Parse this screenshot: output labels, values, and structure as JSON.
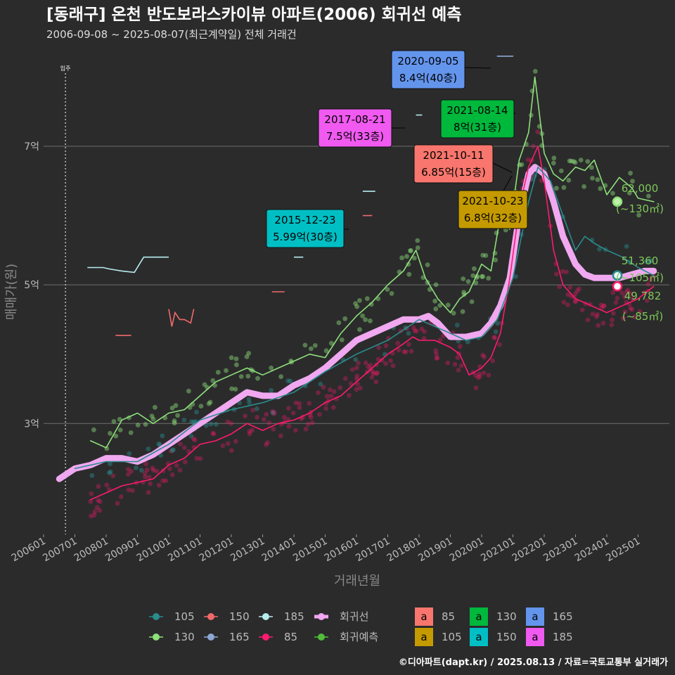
{
  "title": "[동래구] 온천 반도보라스카이뷰 아파트(2006) 회귀선 예측",
  "subtitle": "2006-09-08 ~ 2025-08-07(최근계약일) 전체 거래건",
  "caption": "©디아파트(dapt.kr) / 2025.08.13 / 자료=국토교통부 실거래가",
  "colors": {
    "background": "#2b2b2c",
    "grid": "#6e6e6e",
    "s85": "#ff1a6e",
    "s105": "#2a8c8c",
    "s130": "#8ee07a",
    "s150": "#f06a6a",
    "s165": "#8da7d3",
    "s185": "#b7ecee",
    "regression": "#f0a8f0",
    "prediction": "#4fbf3a"
  },
  "chart_data": {
    "type": "line",
    "title": "[동래구] 온천 반도보라스카이뷰 아파트(2006) 회귀선 예측",
    "xlabel": "거래년월",
    "ylabel": "매매가(원)",
    "xlim": [
      2006.0,
      2026.0
    ],
    "ylim": [
      14000,
      84000
    ],
    "y_ticks": [
      {
        "value": 30000,
        "label": "3억"
      },
      {
        "value": 50000,
        "label": "5억"
      },
      {
        "value": 70000,
        "label": "7억"
      }
    ],
    "x_ticks": [
      "200601",
      "200701",
      "200801",
      "200901",
      "201001",
      "201101",
      "201201",
      "201301",
      "201401",
      "201501",
      "201601",
      "201701",
      "201801",
      "201901",
      "202001",
      "202101",
      "202201",
      "202301",
      "202401",
      "202501"
    ],
    "vline": {
      "x": 2006.7,
      "label": "입주"
    },
    "series": [
      {
        "name": "85",
        "color_key": "s85",
        "x": [
          2007.5,
          2008.0,
          2008.5,
          2009.0,
          2009.5,
          2010.0,
          2010.5,
          2011.0,
          2011.5,
          2012.0,
          2012.5,
          2013.0,
          2013.5,
          2014.0,
          2014.5,
          2015.0,
          2015.5,
          2016.0,
          2016.5,
          2017.0,
          2017.5,
          2017.8,
          2018.0,
          2018.5,
          2019.0,
          2019.3,
          2019.6,
          2020.0,
          2020.3,
          2020.6,
          2020.9,
          2021.2,
          2021.5,
          2021.8,
          2022.0,
          2022.3,
          2022.6,
          2023.0,
          2023.5,
          2024.0,
          2024.5,
          2025.0,
          2025.5
        ],
        "y": [
          19000,
          20000,
          21000,
          21500,
          22000,
          24000,
          25000,
          27000,
          27500,
          28500,
          30000,
          29000,
          30000,
          30500,
          31500,
          33000,
          34000,
          36000,
          38000,
          40000,
          41500,
          42500,
          42000,
          42000,
          41000,
          40000,
          37000,
          38000,
          39500,
          43000,
          51000,
          61000,
          67000,
          70000,
          65000,
          55000,
          50000,
          48000,
          47000,
          46000,
          47000,
          48000,
          49782
        ]
      },
      {
        "name": "105",
        "color_key": "s105",
        "x": [
          2007.0,
          2008.0,
          2009.0,
          2010.0,
          2011.0,
          2012.0,
          2013.0,
          2014.0,
          2015.0,
          2016.0,
          2017.0,
          2017.5,
          2018.0,
          2018.5,
          2019.0,
          2019.5,
          2020.0,
          2020.5,
          2021.0,
          2021.5,
          2021.8,
          2022.2,
          2022.6,
          2023.0,
          2023.3,
          2023.6,
          2024.0,
          2024.5,
          2025.0,
          2025.5
        ],
        "y": [
          23500,
          24500,
          24500,
          27000,
          30500,
          32000,
          33000,
          34500,
          37500,
          40000,
          42000,
          43500,
          45000,
          44000,
          43000,
          42000,
          42500,
          45000,
          51000,
          62000,
          67000,
          65000,
          60000,
          55000,
          57000,
          56000,
          55000,
          54000,
          52500,
          51360
        ]
      },
      {
        "name": "130",
        "color_key": "s130",
        "x": [
          2007.5,
          2008.0,
          2008.5,
          2009.0,
          2009.5,
          2010.0,
          2010.5,
          2011.0,
          2011.5,
          2012.0,
          2012.5,
          2013.0,
          2013.5,
          2014.0,
          2014.5,
          2015.0,
          2015.5,
          2016.0,
          2016.5,
          2017.0,
          2017.5,
          2017.9,
          2018.2,
          2018.6,
          2019.0,
          2019.3,
          2019.6,
          2020.0,
          2020.3,
          2020.6,
          2020.9,
          2021.2,
          2021.5,
          2021.7,
          2022.0,
          2022.3,
          2022.6,
          2023.0,
          2023.3,
          2023.6,
          2024.0,
          2024.4,
          2024.8,
          2025.0,
          2025.5
        ],
        "y": [
          27500,
          26500,
          30500,
          31500,
          30000,
          31500,
          32000,
          34000,
          36000,
          37000,
          38000,
          37000,
          38000,
          39000,
          40000,
          39500,
          43000,
          45500,
          47500,
          50000,
          52000,
          55000,
          51000,
          48000,
          46000,
          48000,
          49000,
          53000,
          52000,
          60000,
          58000,
          68000,
          72000,
          80000,
          69000,
          66000,
          65000,
          67000,
          66500,
          68000,
          63000,
          65500,
          64000,
          62500,
          62000
        ]
      },
      {
        "name": "150",
        "color_key": "s150",
        "x": [
          2008.3,
          2008.8,
          2010.0,
          2010.1,
          2010.2,
          2010.35,
          2010.5,
          2010.7,
          2010.8,
          2013.3,
          2013.7,
          2016.2,
          2016.5
        ],
        "y": [
          42700,
          42700,
          46500,
          44000,
          46000,
          45000,
          45000,
          44500,
          46500,
          49000,
          49000,
          60000,
          60000
        ]
      },
      {
        "name": "165",
        "color_key": "s165",
        "x": [
          2020.5,
          2021.0
        ],
        "y": [
          83000,
          83000
        ]
      },
      {
        "name": "185",
        "color_key": "s185",
        "x": [
          2007.4,
          2007.9,
          2008.1,
          2008.5,
          2008.9,
          2009.2,
          2009.6,
          2009.8,
          2010.0,
          2014.0,
          2014.3,
          2016.2,
          2016.6,
          2017.9,
          2018.1
        ],
        "y": [
          52500,
          52500,
          52300,
          52000,
          51800,
          54000,
          54000,
          54000,
          54000,
          54000,
          54000,
          63500,
          63500,
          74500,
          74500
        ]
      },
      {
        "name": "회귀선",
        "color_key": "regression",
        "x": [
          2006.5,
          2007.0,
          2007.5,
          2008.0,
          2008.5,
          2009.0,
          2009.5,
          2010.0,
          2010.5,
          2011.0,
          2011.5,
          2012.0,
          2012.5,
          2013.0,
          2013.5,
          2014.0,
          2014.5,
          2015.0,
          2015.5,
          2016.0,
          2016.5,
          2017.0,
          2017.5,
          2018.0,
          2018.3,
          2018.6,
          2019.0,
          2019.5,
          2020.0,
          2020.3,
          2020.6,
          2020.9,
          2021.2,
          2021.5,
          2021.7,
          2022.0,
          2022.3,
          2022.6,
          2023.0,
          2023.3,
          2023.6,
          2024.0,
          2024.4,
          2024.8,
          2025.2,
          2025.5
        ],
        "y": [
          22000,
          23500,
          24000,
          25000,
          25000,
          24500,
          25500,
          27000,
          28500,
          30000,
          31500,
          33000,
          34500,
          34000,
          34000,
          35500,
          36500,
          38000,
          40000,
          42000,
          43000,
          44000,
          45000,
          45000,
          45500,
          44500,
          42500,
          42500,
          43000,
          44500,
          47000,
          51000,
          60000,
          66000,
          67000,
          66000,
          62000,
          57000,
          53000,
          51500,
          51000,
          51000,
          51000,
          51500,
          52000,
          52000
        ]
      }
    ],
    "prediction_points": [
      {
        "name": "130",
        "value": 62000,
        "label": "62,000",
        "area": "(~130㎡)"
      },
      {
        "name": "105",
        "value": 51360,
        "label": "51,360",
        "area": "(~105㎡)"
      },
      {
        "name": "85",
        "value": 49782,
        "label": "49,782",
        "area": "(~85㎡)"
      }
    ],
    "annotations": [
      {
        "date": "2020-09-05",
        "text": "8.4억(40층)",
        "value": 84000,
        "x": 2020.7,
        "size": "165",
        "color_key": "s165",
        "box_color": "#6495ed"
      },
      {
        "date": "2017-08-21",
        "text": "7.5억(33층)",
        "value": 75000,
        "x": 2017.6,
        "size": "185",
        "color_key": "s185",
        "box_color": "#f05af0"
      },
      {
        "date": "2021-08-14",
        "text": "8억(31층)",
        "value": 80000,
        "x": 2021.6,
        "size": "130",
        "color_key": "s130",
        "box_color": "#00b83c"
      },
      {
        "date": "2021-10-11",
        "text": "6.85억(15층)",
        "value": 68500,
        "x": 2021.8,
        "size": "85",
        "color_key": "s85",
        "box_color": "#f8766d"
      },
      {
        "date": "2021-10-23",
        "text": "6.8억(32층)",
        "value": 68000,
        "x": 2021.8,
        "size": "105",
        "color_key": "s105",
        "box_color": "#c49a00"
      },
      {
        "date": "2015-12-23",
        "text": "5.99억(30층)",
        "value": 59900,
        "x": 2016.0,
        "size": "150",
        "color_key": "s150",
        "box_color": "#00bfc4"
      }
    ]
  },
  "legend": {
    "lines": [
      {
        "label": "105",
        "color_key": "s105"
      },
      {
        "label": "150",
        "color_key": "s150"
      },
      {
        "label": "185",
        "color_key": "s185"
      },
      {
        "label": "회귀선",
        "color_key": "regression"
      },
      {
        "label": "130",
        "color_key": "s130"
      },
      {
        "label": "165",
        "color_key": "s165"
      },
      {
        "label": "85",
        "color_key": "s85"
      },
      {
        "label": "회귀예측",
        "color_key": "prediction"
      }
    ],
    "boxes_glyph": "a",
    "boxes": [
      {
        "label": "85",
        "color": "#f8766d"
      },
      {
        "label": "130",
        "color": "#00b83c"
      },
      {
        "label": "165",
        "color": "#6495ed"
      },
      {
        "label": "105",
        "color": "#c49a00"
      },
      {
        "label": "150",
        "color": "#00bfc4"
      },
      {
        "label": "185",
        "color": "#f05af0"
      }
    ]
  }
}
